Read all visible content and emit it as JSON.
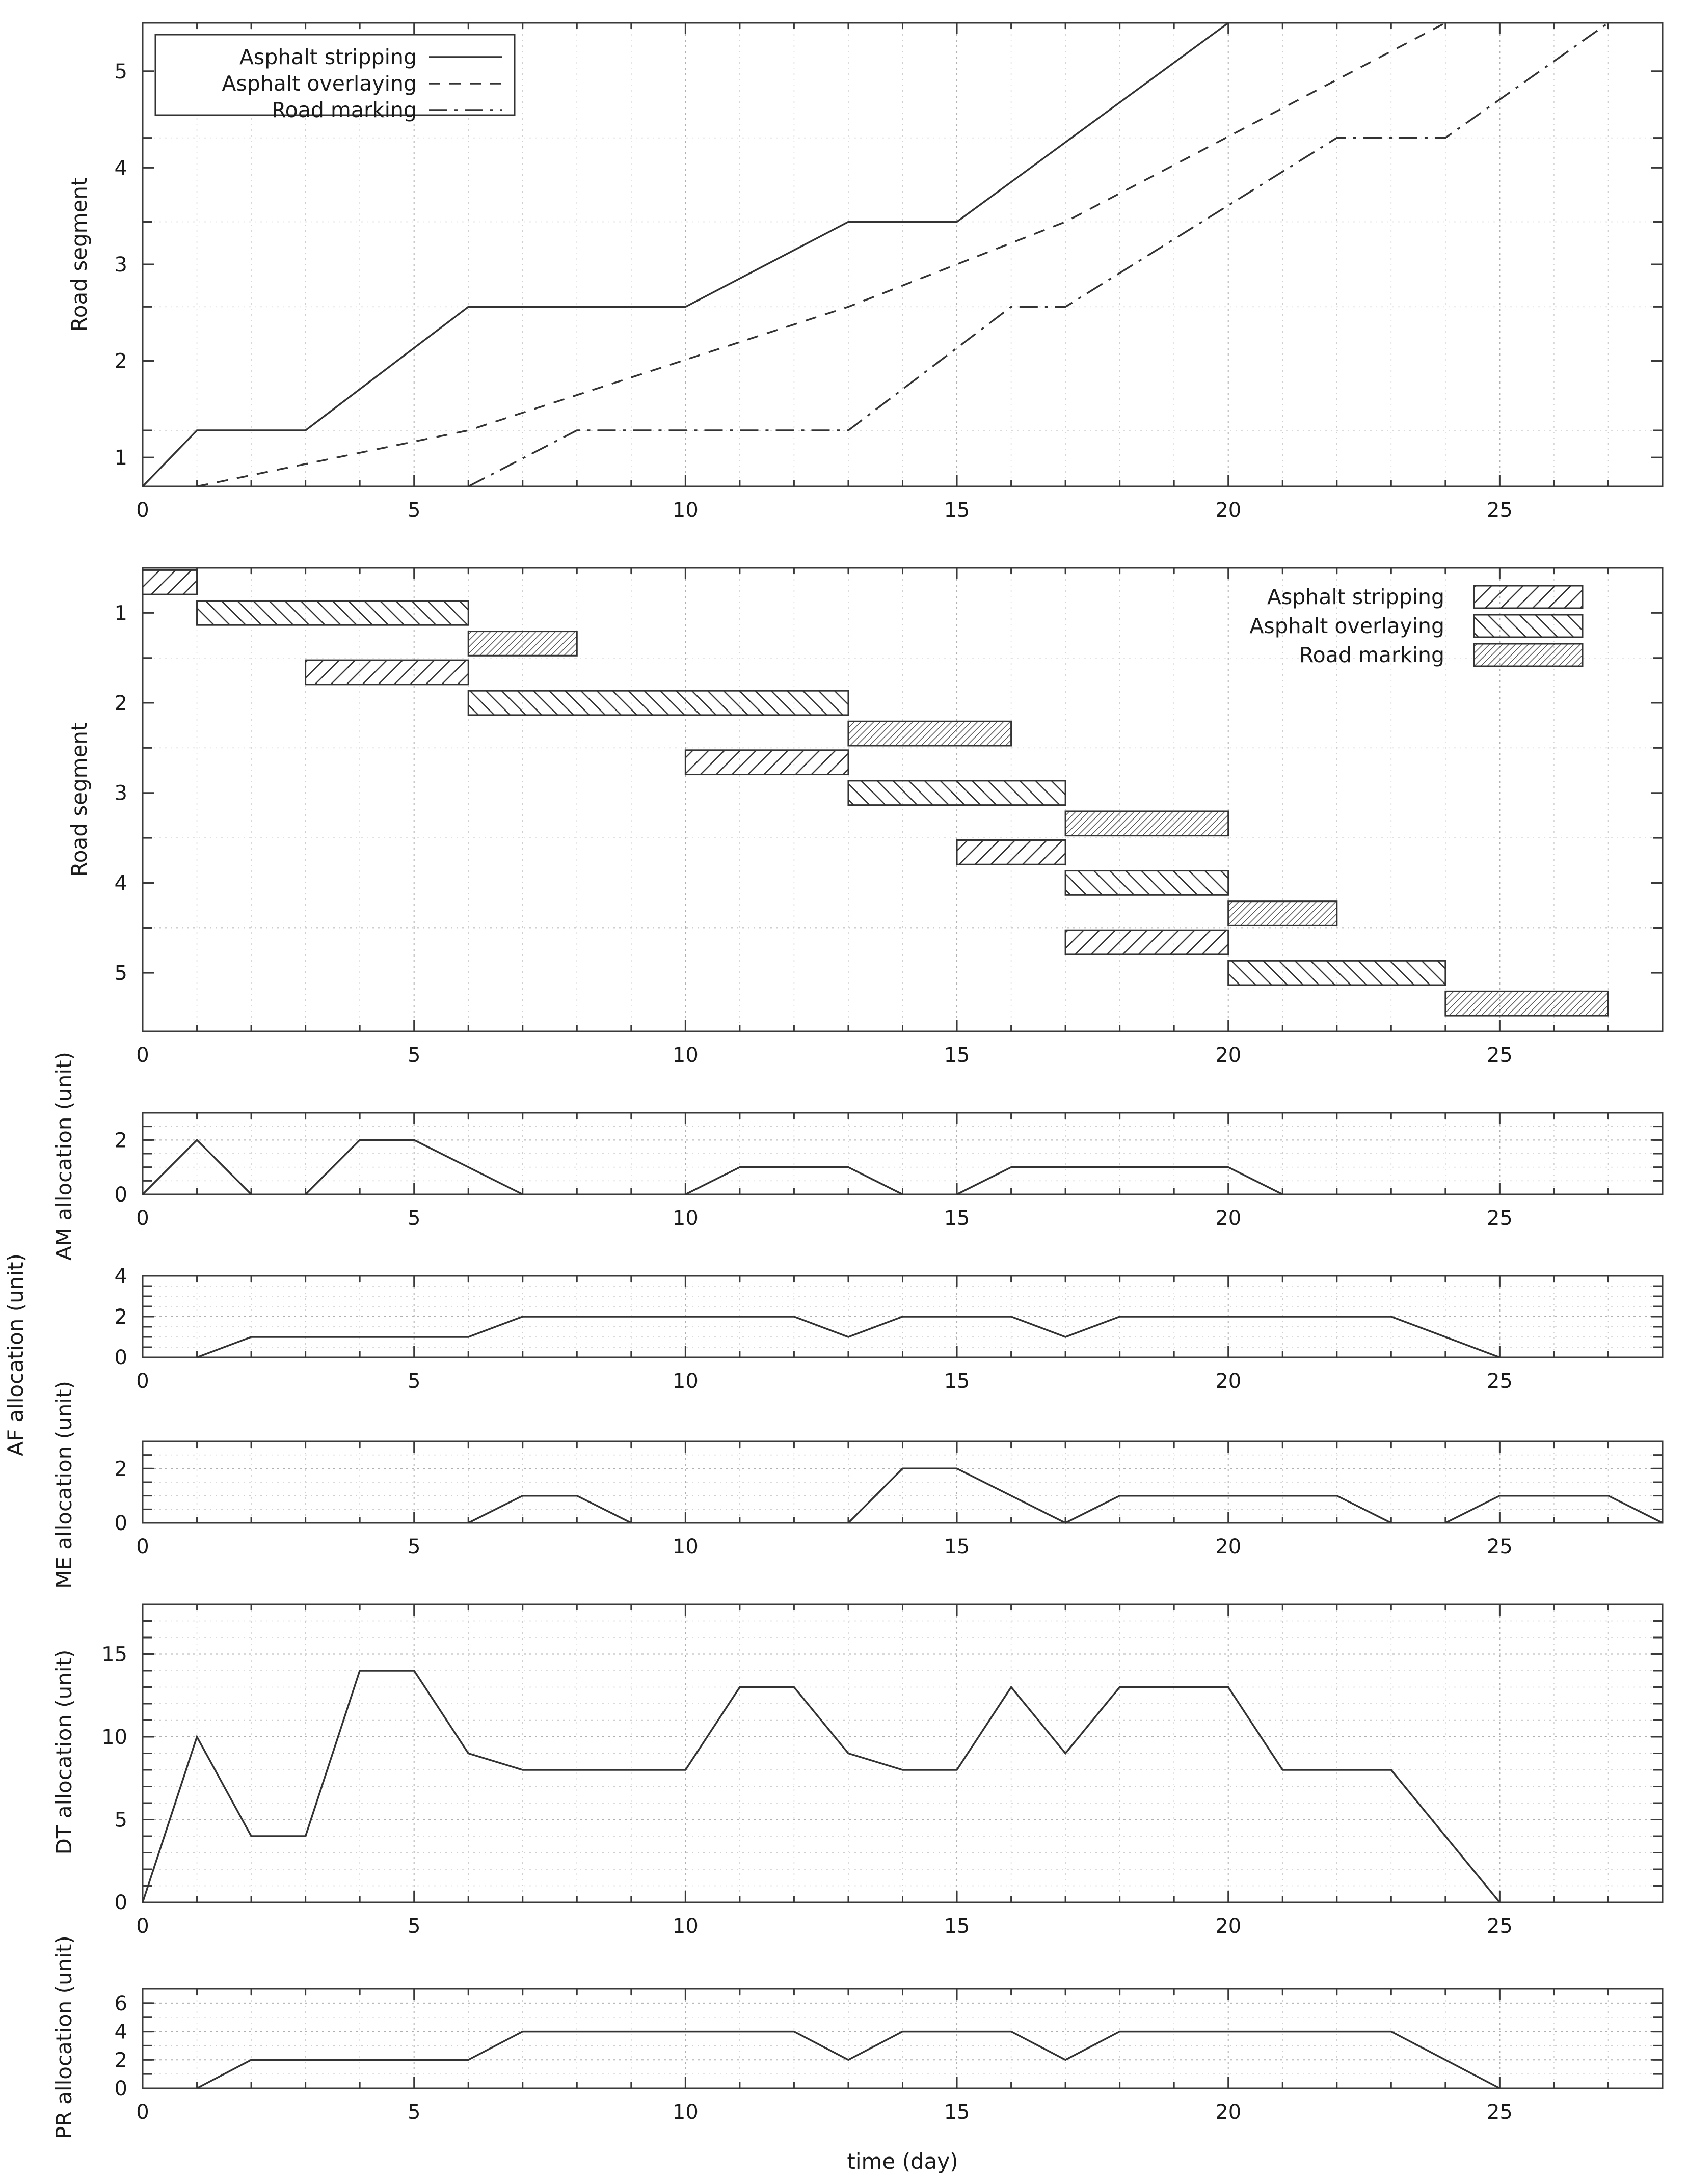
{
  "chart_data": [
    {
      "id": "segment-progress",
      "type": "line",
      "ylabel": "Road segment",
      "xlim": [
        0,
        28
      ],
      "ylim": [
        0.7,
        5.5
      ],
      "xticks": [
        0,
        5,
        10,
        15,
        20,
        25
      ],
      "yticks": [
        1,
        2,
        3,
        4,
        5
      ],
      "ygrid": [
        1.28,
        2.56,
        3.44,
        4.31
      ],
      "legend_position": "top-left",
      "series": [
        {
          "name": "Asphalt stripping",
          "style": "solid",
          "points": [
            [
              0,
              0.7
            ],
            [
              1,
              1.28
            ],
            [
              3,
              1.28
            ],
            [
              6,
              2.56
            ],
            [
              10,
              2.56
            ],
            [
              13,
              3.44
            ],
            [
              15,
              3.44
            ],
            [
              20,
              5.5
            ]
          ]
        },
        {
          "name": "Asphalt overlaying",
          "style": "dashed",
          "points": [
            [
              1,
              0.7
            ],
            [
              6,
              1.28
            ],
            [
              13,
              2.56
            ],
            [
              17,
              3.44
            ],
            [
              24,
              5.5
            ]
          ]
        },
        {
          "name": "Road marking",
          "style": "dashdot",
          "points": [
            [
              6,
              0.7
            ],
            [
              8,
              1.28
            ],
            [
              13,
              1.28
            ],
            [
              16,
              2.56
            ],
            [
              17,
              2.56
            ],
            [
              22,
              4.31
            ],
            [
              24,
              4.31
            ],
            [
              27,
              5.5
            ]
          ]
        }
      ]
    },
    {
      "id": "gantt",
      "type": "bar",
      "ylabel": "Road segment",
      "xlim": [
        0,
        28
      ],
      "xticks": [
        0,
        5,
        10,
        15,
        20,
        25
      ],
      "yticks": [
        1,
        2,
        3,
        4,
        5
      ],
      "legend_position": "top-right",
      "legend": [
        "Asphalt stripping",
        "Asphalt overlaying",
        "Road marking"
      ],
      "bars": [
        {
          "activity": "Asphalt stripping",
          "segment": 1,
          "start": 0,
          "end": 1
        },
        {
          "activity": "Asphalt overlaying",
          "segment": 1,
          "start": 1,
          "end": 6
        },
        {
          "activity": "Road marking",
          "segment": 1,
          "start": 6,
          "end": 8
        },
        {
          "activity": "Asphalt stripping",
          "segment": 2,
          "start": 3,
          "end": 6
        },
        {
          "activity": "Asphalt overlaying",
          "segment": 2,
          "start": 6,
          "end": 13
        },
        {
          "activity": "Road marking",
          "segment": 2,
          "start": 13,
          "end": 16
        },
        {
          "activity": "Asphalt stripping",
          "segment": 3,
          "start": 10,
          "end": 13
        },
        {
          "activity": "Asphalt overlaying",
          "segment": 3,
          "start": 13,
          "end": 17
        },
        {
          "activity": "Road marking",
          "segment": 3,
          "start": 17,
          "end": 20
        },
        {
          "activity": "Asphalt stripping",
          "segment": 4,
          "start": 15,
          "end": 17
        },
        {
          "activity": "Asphalt overlaying",
          "segment": 4,
          "start": 17,
          "end": 20
        },
        {
          "activity": "Road marking",
          "segment": 4,
          "start": 20,
          "end": 22
        },
        {
          "activity": "Asphalt stripping",
          "segment": 5,
          "start": 17,
          "end": 20
        },
        {
          "activity": "Asphalt overlaying",
          "segment": 5,
          "start": 20,
          "end": 24
        },
        {
          "activity": "Road marking",
          "segment": 5,
          "start": 24,
          "end": 27
        }
      ]
    },
    {
      "id": "am",
      "type": "line",
      "ylabel": "AM allocation (unit)",
      "xlim": [
        0,
        28
      ],
      "ylim": [
        0,
        3
      ],
      "xticks": [
        0,
        5,
        10,
        15,
        20,
        25
      ],
      "yticks": [
        0,
        2
      ],
      "segments": [
        [
          [
            0,
            0
          ],
          [
            1,
            2
          ],
          [
            2,
            0
          ]
        ],
        [
          [
            3,
            0
          ],
          [
            4,
            2
          ],
          [
            5,
            2
          ],
          [
            7,
            0
          ]
        ],
        [
          [
            10,
            0
          ],
          [
            11,
            1
          ],
          [
            13,
            1
          ],
          [
            14,
            0
          ]
        ],
        [
          [
            15,
            0
          ],
          [
            16,
            1
          ],
          [
            20,
            1
          ],
          [
            21,
            0
          ]
        ]
      ]
    },
    {
      "id": "af",
      "type": "line",
      "ylabel": "AF allocation (unit)",
      "xlim": [
        0,
        28
      ],
      "ylim": [
        0,
        4
      ],
      "xticks": [
        0,
        5,
        10,
        15,
        20,
        25
      ],
      "yticks": [
        0,
        2,
        4
      ],
      "segments": [
        [
          [
            1,
            0
          ],
          [
            2,
            1
          ],
          [
            6,
            1
          ],
          [
            7,
            2
          ],
          [
            12,
            2
          ],
          [
            13,
            1
          ],
          [
            14,
            2
          ],
          [
            16,
            2
          ],
          [
            17,
            1
          ],
          [
            18,
            2
          ],
          [
            23,
            2
          ],
          [
            25,
            0
          ]
        ]
      ]
    },
    {
      "id": "me",
      "type": "line",
      "ylabel": "ME allocation (unit)",
      "xlim": [
        0,
        28
      ],
      "ylim": [
        0,
        3
      ],
      "xticks": [
        0,
        5,
        10,
        15,
        20,
        25
      ],
      "yticks": [
        0,
        2
      ],
      "segments": [
        [
          [
            6,
            0
          ],
          [
            7,
            1
          ],
          [
            8,
            1
          ],
          [
            9,
            0
          ]
        ],
        [
          [
            13,
            0
          ],
          [
            14,
            2
          ],
          [
            15,
            2
          ],
          [
            17,
            0
          ],
          [
            18,
            1
          ],
          [
            22,
            1
          ],
          [
            23,
            0
          ]
        ],
        [
          [
            24,
            0
          ],
          [
            25,
            1
          ],
          [
            27,
            1
          ],
          [
            28,
            0
          ]
        ]
      ]
    },
    {
      "id": "dt",
      "type": "line",
      "ylabel": "DT allocation (unit)",
      "xlim": [
        0,
        28
      ],
      "ylim": [
        0,
        18
      ],
      "xticks": [
        0,
        5,
        10,
        15,
        20,
        25
      ],
      "yticks": [
        0,
        5,
        10,
        15
      ],
      "segments": [
        [
          [
            0,
            0
          ],
          [
            1,
            10
          ],
          [
            2,
            4
          ],
          [
            3,
            4
          ],
          [
            4,
            14
          ],
          [
            5,
            14
          ],
          [
            6,
            9
          ],
          [
            7,
            8
          ],
          [
            10,
            8
          ],
          [
            11,
            13
          ],
          [
            12,
            13
          ],
          [
            13,
            9
          ],
          [
            14,
            8
          ],
          [
            15,
            8
          ],
          [
            16,
            13
          ],
          [
            17,
            9
          ],
          [
            18,
            13
          ],
          [
            20,
            13
          ],
          [
            21,
            8
          ],
          [
            23,
            8
          ],
          [
            25,
            0
          ]
        ]
      ]
    },
    {
      "id": "pr",
      "type": "line",
      "ylabel": "PR allocation (unit)",
      "xlabel": "time (day)",
      "xlim": [
        0,
        28
      ],
      "ylim": [
        0,
        7
      ],
      "xticks": [
        0,
        5,
        10,
        15,
        20,
        25
      ],
      "yticks": [
        0,
        2,
        4,
        6
      ],
      "segments": [
        [
          [
            1,
            0
          ],
          [
            2,
            2
          ],
          [
            6,
            2
          ],
          [
            7,
            4
          ],
          [
            12,
            4
          ],
          [
            13,
            2
          ],
          [
            14,
            4
          ],
          [
            16,
            4
          ],
          [
            17,
            2
          ],
          [
            18,
            4
          ],
          [
            23,
            4
          ],
          [
            25,
            0
          ]
        ]
      ]
    }
  ]
}
